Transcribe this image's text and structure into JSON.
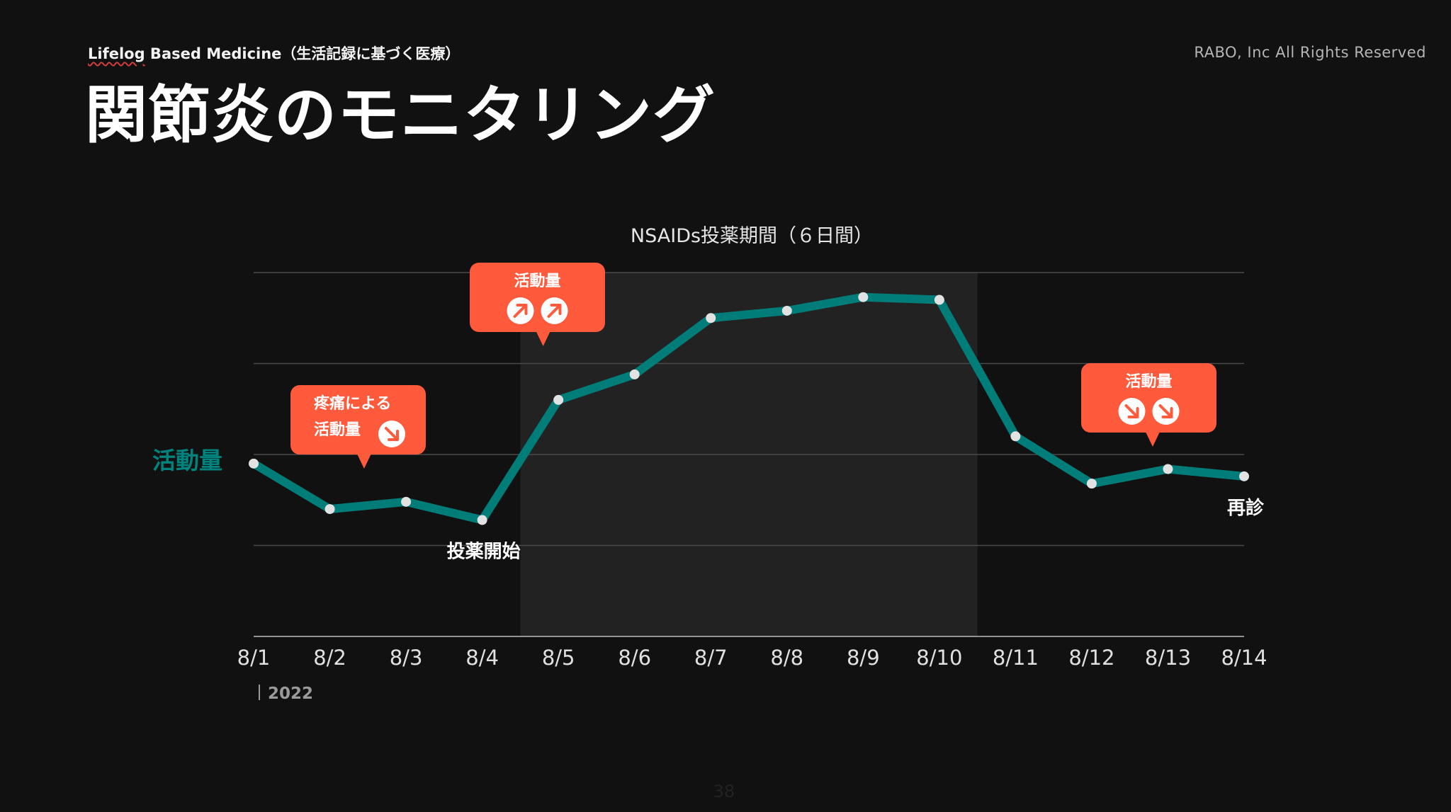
{
  "header": {
    "subtitle_underlined": "Lifelog",
    "subtitle_rest": " Based Medicine（生活記録に基づく医療）",
    "copyright": "RABO, Inc All Rights Reserved"
  },
  "slide": {
    "title": "関節炎のモニタリング",
    "page_number": "38"
  },
  "colors": {
    "background": "#111111",
    "line": "#007d78",
    "callout": "#ff5a3c",
    "period_shade": "#222222",
    "grid": "#4a4a4a",
    "marker": "#e2e2e2",
    "series_label": "#00827d"
  },
  "chart_data": {
    "type": "line",
    "categories": [
      "8/1",
      "8/2",
      "8/3",
      "8/4",
      "8/5",
      "8/6",
      "8/7",
      "8/8",
      "8/9",
      "8/10",
      "8/11",
      "8/12",
      "8/13",
      "8/14"
    ],
    "series": [
      {
        "name": "活動量",
        "values": [
          1.9,
          1.4,
          1.48,
          1.28,
          2.6,
          2.88,
          3.5,
          3.58,
          3.73,
          3.7,
          2.2,
          1.68,
          1.84,
          1.76
        ]
      }
    ],
    "ylabel": "活動量",
    "ylim": [
      0,
      4
    ],
    "grid": true,
    "year_label": "2022",
    "shaded_period": {
      "from": 3.5,
      "to": 9.5,
      "label": "NSAIDs投薬期間（６日間）"
    },
    "annotations": [
      {
        "category_index": 3,
        "text": "投薬開始"
      },
      {
        "category_index": 13,
        "text": "再診"
      }
    ],
    "callouts": [
      {
        "anchor_x": 1.45,
        "lines": [
          "疼痛による",
          "活動量"
        ],
        "arrows": [
          "down"
        ]
      },
      {
        "anchor_x": 3.8,
        "lines": [
          "活動量"
        ],
        "arrows": [
          "up",
          "up"
        ]
      },
      {
        "anchor_x": 11.8,
        "lines": [
          "活動量"
        ],
        "arrows": [
          "down",
          "down"
        ]
      }
    ]
  }
}
